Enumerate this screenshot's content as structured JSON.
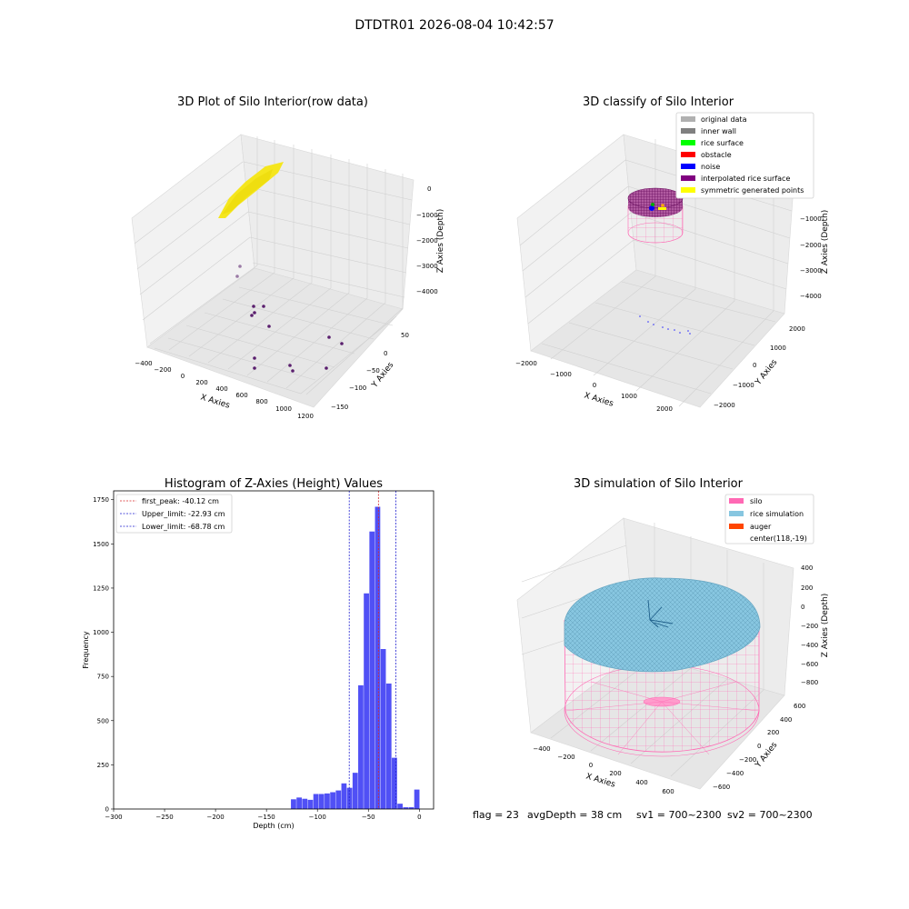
{
  "figure": {
    "suptitle": "DTDTR01 2026-08-04 10:42:57"
  },
  "footer": {
    "flag": "flag = 23",
    "avg_depth": "avgDepth = 38 cm",
    "sv1": "sv1 = 700~2300",
    "sv2": "sv2 = 700~2300"
  },
  "colors": {
    "hist_bar": "#5050f5",
    "first_peak": "#d62728",
    "limits": "#1f1fd0",
    "yellow": "#f5e61e",
    "purple": "#5a1f6e",
    "silo": "#ff69b4",
    "rice_sim": "#87c6e0",
    "auger": "#ff4500"
  },
  "chart_data": [
    {
      "type": "scatter",
      "title": "3D Plot of Silo Interior(row data)",
      "xlabel": "X Axies",
      "ylabel": "Y Axies",
      "zlabel": "Z Axies (Depth)",
      "xticks": [
        "−400",
        "−200",
        "0",
        "200",
        "400",
        "600",
        "800",
        "1000",
        "1200"
      ],
      "yticks": [
        "50",
        "0",
        "−50",
        "−100",
        "−150"
      ],
      "zticks": [
        "0",
        "−1000",
        "−2000",
        "−3000",
        "−4000"
      ],
      "xlim": [
        -450,
        1250
      ],
      "ylim": [
        -170,
        90
      ],
      "zlim": [
        -4500,
        200
      ],
      "series": [
        {
          "color": "yellow",
          "note": "dense cloud",
          "points": []
        }
      ]
    },
    {
      "type": "scatter",
      "title": "3D classify of Silo Interior",
      "zlabel": "Z Axies (Depth)",
      "xlabel": "X Axies",
      "ylabel": "Y Axies",
      "xticks": [
        "−2000",
        "−1000",
        "0",
        "1000",
        "2000"
      ],
      "yticks": [
        "2000",
        "1000",
        "0",
        "−1000",
        "−2000"
      ],
      "zticks": [
        "−1000",
        "−2000",
        "−3000",
        "−4000"
      ],
      "legend": [
        {
          "label": "original data",
          "color": "#b0b0b0"
        },
        {
          "label": "inner wall",
          "color": "#808080"
        },
        {
          "label": "rice surface",
          "color": "#00ff00"
        },
        {
          "label": "obstacle",
          "color": "#ff0000"
        },
        {
          "label": "noise",
          "color": "#0000ff"
        },
        {
          "label": "interpolated rice surface",
          "color": "#800080"
        },
        {
          "label": "symmetric generated points",
          "color": "#ffff00"
        }
      ]
    },
    {
      "type": "bar",
      "title": "Histogram of Z-Axies (Height) Values",
      "xlabel": "Depth (cm)",
      "ylabel": "Frequency",
      "xlim": [
        -300,
        14
      ],
      "ylim": [
        0,
        1800
      ],
      "xticks": [
        -300,
        -250,
        -200,
        -150,
        -100,
        -50,
        0
      ],
      "yticks": [
        0,
        250,
        500,
        750,
        1000,
        1250,
        1500,
        1750
      ],
      "bin_width": 5.5,
      "bins": [
        {
          "x0": -126,
          "count": 55
        },
        {
          "x0": -120.5,
          "count": 65
        },
        {
          "x0": -115,
          "count": 58
        },
        {
          "x0": -109.5,
          "count": 52
        },
        {
          "x0": -104,
          "count": 85
        },
        {
          "x0": -98.5,
          "count": 85
        },
        {
          "x0": -93,
          "count": 88
        },
        {
          "x0": -87.5,
          "count": 95
        },
        {
          "x0": -82,
          "count": 105
        },
        {
          "x0": -76.5,
          "count": 145
        },
        {
          "x0": -71,
          "count": 120
        },
        {
          "x0": -65.5,
          "count": 205
        },
        {
          "x0": -60,
          "count": 700
        },
        {
          "x0": -54.5,
          "count": 1220
        },
        {
          "x0": -49,
          "count": 1570
        },
        {
          "x0": -43.5,
          "count": 1710
        },
        {
          "x0": -38,
          "count": 905
        },
        {
          "x0": -32.5,
          "count": 710
        },
        {
          "x0": -27,
          "count": 290
        },
        {
          "x0": -21.5,
          "count": 30
        },
        {
          "x0": -16,
          "count": 10
        },
        {
          "x0": -10.5,
          "count": 10
        },
        {
          "x0": -5,
          "count": 110
        }
      ],
      "lines": [
        {
          "label": "first_peak: -40.12 cm",
          "x": -40.12,
          "color": "first_peak"
        },
        {
          "label": "Upper_limit: -22.93 cm",
          "x": -22.93,
          "color": "limits"
        },
        {
          "label": "Lower_limit: -68.78 cm",
          "x": -68.78,
          "color": "limits"
        }
      ]
    },
    {
      "type": "scatter",
      "title": "3D simulation of Silo Interior",
      "xlabel": "X Axies",
      "ylabel": "Y Axies",
      "zlabel": "Z Axies (Depth)",
      "xticks": [
        "−400",
        "−200",
        "0",
        "200",
        "400",
        "600"
      ],
      "yticks": [
        "600",
        "400",
        "200",
        "0",
        "−200",
        "−400",
        "−600"
      ],
      "zticks": [
        "400",
        "200",
        "0",
        "−200",
        "−400",
        "−600",
        "−800"
      ],
      "legend": [
        {
          "label": "silo",
          "color": "#ff69b4"
        },
        {
          "label": "rice simulation",
          "color": "#87c6e0"
        },
        {
          "label": "auger",
          "color": "#ff4500"
        },
        {
          "label": "center(118,-19)",
          "color": ""
        }
      ]
    }
  ]
}
